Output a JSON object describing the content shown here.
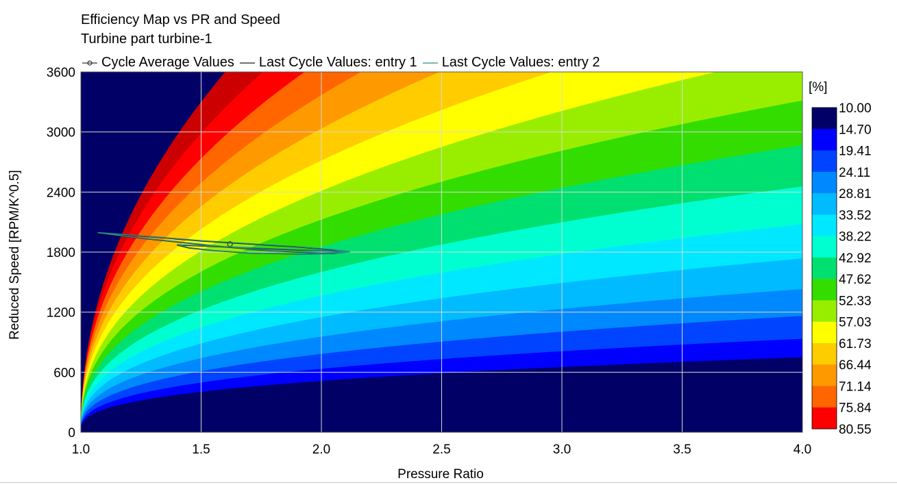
{
  "chart_data": {
    "type": "heatmap",
    "title": "Efficiency Map vs PR and Speed",
    "subtitle": "Turbine part turbine-1",
    "xlabel": "Pressure Ratio",
    "ylabel": "Reduced Speed [RPM/K^0.5]",
    "x_ticks": [
      "1.0",
      "1.5",
      "2.0",
      "2.5",
      "3.0",
      "3.5",
      "4.0"
    ],
    "y_ticks": [
      "0",
      "600",
      "1200",
      "1800",
      "2400",
      "3000",
      "3600"
    ],
    "xlim": [
      1.0,
      4.0
    ],
    "ylim": [
      0,
      3600
    ],
    "grid": true,
    "colorbar": {
      "unit": "[%]",
      "levels": [
        "10.00",
        "14.70",
        "19.41",
        "24.11",
        "28.81",
        "33.52",
        "38.22",
        "42.92",
        "47.62",
        "52.33",
        "57.03",
        "61.73",
        "66.44",
        "71.14",
        "75.84",
        "80.55"
      ],
      "colors": [
        "#000066",
        "#0000ff",
        "#0044ff",
        "#0088ff",
        "#00bbff",
        "#00e8ff",
        "#00ffd0",
        "#00e070",
        "#33dd00",
        "#99ee00",
        "#ffff00",
        "#ffcc00",
        "#ff9900",
        "#ff6600",
        "#ff0000",
        "#cc0000"
      ]
    },
    "legend_position": "top",
    "legend": [
      {
        "label": "Cycle Average Values",
        "color": "#333333",
        "marker": "circle"
      },
      {
        "label": "Last Cycle Values: entry 1",
        "color": "#1a1a1a"
      },
      {
        "label": "Last Cycle Values: entry 2",
        "color": "#2a8a8a"
      }
    ],
    "series": [
      {
        "name": "Cycle Average Values",
        "x": [
          1.62
        ],
        "y": [
          1880
        ]
      },
      {
        "name": "Last Cycle Values: entry 1",
        "x": [
          1.07,
          1.3,
          1.5,
          1.7,
          1.9,
          2.05,
          2.1,
          2.05,
          1.9,
          1.7,
          1.55,
          1.45,
          1.4,
          1.5,
          1.7,
          1.9,
          2.05,
          2.1,
          2.0,
          1.8,
          1.6,
          1.4,
          1.2,
          1.07
        ],
        "y": [
          1990,
          1950,
          1910,
          1880,
          1850,
          1820,
          1800,
          1785,
          1780,
          1790,
          1815,
          1840,
          1870,
          1860,
          1840,
          1820,
          1810,
          1800,
          1790,
          1810,
          1850,
          1900,
          1950,
          1990
        ]
      },
      {
        "name": "Last Cycle Values: entry 2",
        "x": [
          1.07,
          1.3,
          1.5,
          1.7,
          1.9,
          2.05,
          2.12,
          2.05,
          1.9,
          1.7,
          1.55,
          1.45,
          1.4,
          1.5,
          1.7,
          1.9,
          2.05,
          2.12,
          2.0,
          1.8,
          1.6,
          1.4,
          1.2,
          1.07
        ],
        "y": [
          1995,
          1955,
          1915,
          1885,
          1855,
          1825,
          1805,
          1788,
          1782,
          1792,
          1818,
          1845,
          1875,
          1865,
          1845,
          1825,
          1812,
          1803,
          1794,
          1814,
          1854,
          1904,
          1954,
          1995
        ]
      }
    ]
  }
}
